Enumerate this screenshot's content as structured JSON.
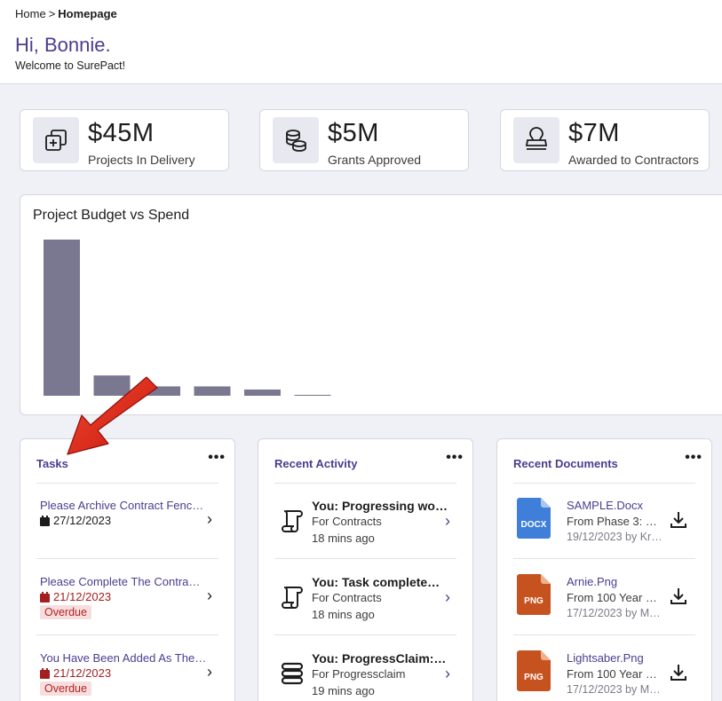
{
  "breadcrumb": {
    "home": "Home",
    "separator": ">",
    "current": "Homepage"
  },
  "greeting": "Hi, Bonnie.",
  "welcome": "Welcome to SurePact!",
  "stats": [
    {
      "value": "$45M",
      "label": "Projects In Delivery",
      "icon": "projects-icon"
    },
    {
      "value": "$5M",
      "label": "Grants Approved",
      "icon": "coins-icon"
    },
    {
      "value": "$7M",
      "label": "Awarded to Contractors",
      "icon": "stamp-icon"
    }
  ],
  "chart_data": {
    "type": "bar",
    "title": "Project Budget vs Spend",
    "xlabel": "",
    "ylabel": "",
    "ylim": [
      0,
      100
    ],
    "values": [
      100,
      13,
      6,
      6,
      4,
      0.6
    ],
    "bar_color": "#7a7891"
  },
  "tasks": {
    "title": "Tasks",
    "menu": "•••",
    "items": [
      {
        "title": "Please Archive Contract Fenc…",
        "date": "27/12/2023",
        "overdue": false
      },
      {
        "title": "Please Complete The Contra…",
        "date": "21/12/2023",
        "overdue": true,
        "badge": "Overdue"
      },
      {
        "title": "You Have Been Added As The…",
        "date": "21/12/2023",
        "overdue": true,
        "badge": "Overdue"
      }
    ]
  },
  "activity": {
    "title": "Recent Activity",
    "menu": "•••",
    "items": [
      {
        "title": "You: Progressing wo…",
        "sub": "For Contracts",
        "time": "18 mins ago",
        "icon": "scroll-icon"
      },
      {
        "title": "You: Task complete…",
        "sub": "For Contracts",
        "time": "18 mins ago",
        "icon": "scroll-icon"
      },
      {
        "title": "You: ProgressClaim:…",
        "sub": "For Progressclaim",
        "time": "19 mins ago",
        "icon": "stack-icon"
      }
    ]
  },
  "documents": {
    "title": "Recent Documents",
    "menu": "•••",
    "items": [
      {
        "name": "SAMPLE.Docx",
        "from": "From Phase 3: De…",
        "meta": "19/12/2023 by Kris…",
        "ext": "DOCX",
        "color": "#3f7fd9"
      },
      {
        "name": "Arnie.Png",
        "from": "From 100 Year Co…",
        "meta": "17/12/2023 by Ma…",
        "ext": "PNG",
        "color": "#c6531f"
      },
      {
        "name": "Lightsaber.Png",
        "from": "From 100 Year Co…",
        "meta": "17/12/2023 by Ma…",
        "ext": "PNG",
        "color": "#c6531f"
      }
    ]
  },
  "colors": {
    "accent": "#4a3d8f",
    "danger": "#b42323",
    "arrow": "#e5261c"
  }
}
